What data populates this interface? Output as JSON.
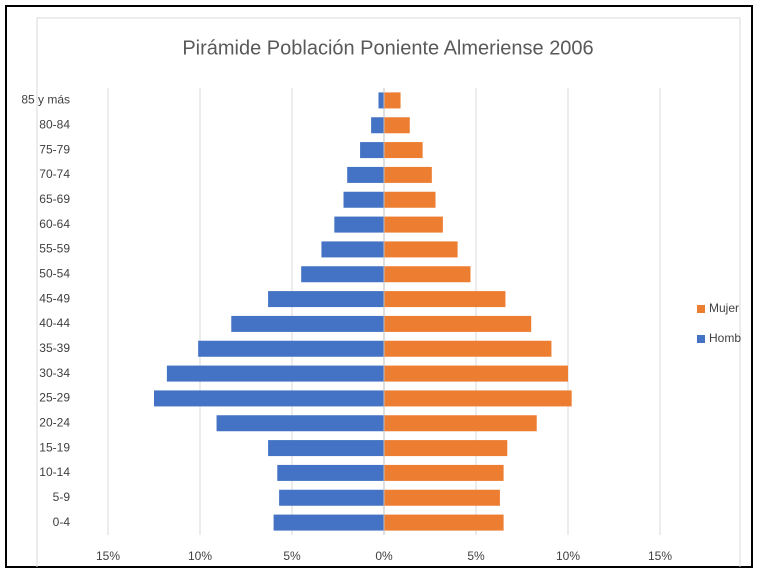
{
  "chart_data": {
    "type": "pyramid",
    "title": "Pirámide Población Poniente Almeriense 2006",
    "categories": [
      "0-4",
      "5-9",
      "10-14",
      "15-19",
      "20-24",
      "25-29",
      "30-34",
      "35-39",
      "40-44",
      "45-49",
      "50-54",
      "55-59",
      "60-64",
      "65-69",
      "70-74",
      "75-79",
      "80-84",
      "85 y más"
    ],
    "series": [
      {
        "name": "Mujer",
        "color": "#ed7d31",
        "values": [
          6.5,
          6.3,
          6.5,
          6.7,
          8.3,
          10.2,
          10.0,
          9.1,
          8.0,
          6.6,
          4.7,
          4.0,
          3.2,
          2.8,
          2.6,
          2.1,
          1.4,
          0.9
        ]
      },
      {
        "name": "Homb",
        "color": "#4472c4",
        "values": [
          -6.0,
          -5.7,
          -5.8,
          -6.3,
          -9.1,
          -12.5,
          -11.8,
          -10.1,
          -8.3,
          -6.3,
          -4.5,
          -3.4,
          -2.7,
          -2.2,
          -2.0,
          -1.3,
          -0.7,
          -0.3
        ]
      }
    ],
    "xlim": [
      -15,
      15
    ],
    "xticks": [
      {
        "value": -15,
        "label": "15%"
      },
      {
        "value": -10,
        "label": "10%"
      },
      {
        "value": -5,
        "label": "5%"
      },
      {
        "value": 0,
        "label": "0%"
      },
      {
        "value": 5,
        "label": "5%"
      },
      {
        "value": 10,
        "label": "10%"
      },
      {
        "value": 15,
        "label": "15%"
      }
    ],
    "grid": true,
    "legend": "right"
  }
}
